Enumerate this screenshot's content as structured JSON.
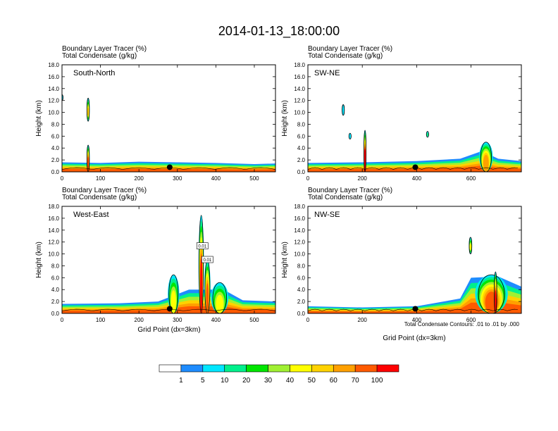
{
  "figure": {
    "title": "2014-01-13_18:00:00",
    "panel_subtitle_line1": "Boundary Layer Tracer   (%)",
    "panel_subtitle_line2": "Total Condensate   (g/kg)",
    "contour_note": "Total Condensate Contours: .01 to .01 by .000"
  },
  "chart_data": [
    {
      "type": "heatmap",
      "name": "South-North",
      "xlabel": "",
      "ylabel": "Height (km)",
      "xlim": [
        0,
        555
      ],
      "ylim": [
        0,
        18
      ],
      "xticks": [
        0,
        100,
        200,
        300,
        400,
        500
      ],
      "yticks": [
        0.0,
        2.0,
        4.0,
        6.0,
        8.0,
        10.0,
        12.0,
        14.0,
        16.0,
        18.0
      ],
      "ytick_labels": [
        "0.0",
        "2.0",
        "4.0",
        "6.0",
        "8.0",
        "10.0",
        "12.0",
        "14.0",
        "16.0",
        "18.0"
      ],
      "marker_x": 280,
      "boundary_layer_top_km": [
        {
          "x": 0,
          "z": 1.6
        },
        {
          "x": 100,
          "z": 1.5
        },
        {
          "x": 200,
          "z": 1.7
        },
        {
          "x": 300,
          "z": 1.6
        },
        {
          "x": 400,
          "z": 1.5
        },
        {
          "x": 500,
          "z": 1.3
        },
        {
          "x": 555,
          "z": 1.4
        }
      ],
      "plumes": [
        {
          "x_center": 68,
          "width": 8,
          "z_top": 4.5,
          "max_pct": 70
        },
        {
          "x_center": 68,
          "width": 8,
          "z_bottom": 8.5,
          "z_top": 12.4,
          "max_pct": 50,
          "detached": true
        },
        {
          "x_center": 0,
          "width": 4,
          "z_bottom": 12.0,
          "z_top": 13.0,
          "max_pct": 5,
          "detached": true
        }
      ]
    },
    {
      "type": "heatmap",
      "name": "SW-NE",
      "xlabel": "",
      "ylabel": "Height (km)",
      "xlim": [
        0,
        785
      ],
      "ylim": [
        0,
        18
      ],
      "xticks": [
        0,
        200,
        400,
        600
      ],
      "yticks": [
        0.0,
        2.0,
        4.0,
        6.0,
        8.0,
        10.0,
        12.0,
        14.0,
        16.0,
        18.0
      ],
      "ytick_labels": [
        "0.0",
        "2.0",
        "4.0",
        "6.0",
        "8.0",
        "10.0",
        "12.0",
        "14.0",
        "16.0",
        "18.0"
      ],
      "marker_x": 395,
      "boundary_layer_top_km": [
        {
          "x": 0,
          "z": 1.5
        },
        {
          "x": 200,
          "z": 1.6
        },
        {
          "x": 400,
          "z": 1.8
        },
        {
          "x": 560,
          "z": 2.2
        },
        {
          "x": 640,
          "z": 3.5
        },
        {
          "x": 700,
          "z": 2.2
        },
        {
          "x": 785,
          "z": 1.8
        }
      ],
      "plumes": [
        {
          "x_center": 210,
          "width": 10,
          "z_top": 7.0,
          "max_pct": 100
        },
        {
          "x_center": 130,
          "width": 10,
          "z_bottom": 9.5,
          "z_top": 11.3,
          "max_pct": 5,
          "detached": true
        },
        {
          "x_center": 155,
          "width": 8,
          "z_bottom": 5.5,
          "z_top": 6.5,
          "max_pct": 5,
          "detached": true
        },
        {
          "x_center": 440,
          "width": 6,
          "z_bottom": 5.8,
          "z_top": 6.8,
          "max_pct": 10,
          "detached": true
        },
        {
          "x_center": 655,
          "width": 50,
          "z_top": 5.0,
          "max_pct": 60
        }
      ]
    },
    {
      "type": "heatmap",
      "name": "West-East",
      "xlabel": "Grid Point (dx=3km)",
      "ylabel": "Height (km)",
      "xlim": [
        0,
        555
      ],
      "ylim": [
        0,
        18
      ],
      "xticks": [
        0,
        100,
        200,
        300,
        400,
        500
      ],
      "yticks": [
        0.0,
        2.0,
        4.0,
        6.0,
        8.0,
        10.0,
        12.0,
        14.0,
        16.0,
        18.0
      ],
      "ytick_labels": [
        "0.0",
        "2.0",
        "4.0",
        "6.0",
        "8.0",
        "10.0",
        "12.0",
        "14.0",
        "16.0",
        "18.0"
      ],
      "marker_x": 280,
      "contour_labels": [
        {
          "text": "0.01",
          "x": 365,
          "z": 11.3
        },
        {
          "text": "0.01",
          "x": 378,
          "z": 9.0
        }
      ],
      "boundary_layer_top_km": [
        {
          "x": 0,
          "z": 1.6
        },
        {
          "x": 150,
          "z": 1.7
        },
        {
          "x": 250,
          "z": 2.0
        },
        {
          "x": 330,
          "z": 4.0
        },
        {
          "x": 420,
          "z": 4.0
        },
        {
          "x": 470,
          "z": 2.2
        },
        {
          "x": 555,
          "z": 2.0
        }
      ],
      "plumes": [
        {
          "x_center": 362,
          "width": 14,
          "z_top": 16.5,
          "max_pct": 100
        },
        {
          "x_center": 378,
          "width": 16,
          "z_top": 9.0,
          "max_pct": 70
        },
        {
          "x_center": 290,
          "width": 30,
          "z_top": 6.5,
          "max_pct": 40
        },
        {
          "x_center": 410,
          "width": 45,
          "z_top": 5.2,
          "max_pct": 40
        }
      ]
    },
    {
      "type": "heatmap",
      "name": "NW-SE",
      "xlabel": "Grid Point (dx=3km)",
      "ylabel": "Height (km)",
      "xlim": [
        0,
        785
      ],
      "ylim": [
        0,
        18
      ],
      "xticks": [
        0,
        200,
        400,
        600
      ],
      "yticks": [
        0.0,
        2.0,
        4.0,
        6.0,
        8.0,
        10.0,
        12.0,
        14.0,
        16.0,
        18.0
      ],
      "ytick_labels": [
        "0.0",
        "2.0",
        "4.0",
        "6.0",
        "8.0",
        "10.0",
        "12.0",
        "14.0",
        "16.0",
        "18.0"
      ],
      "marker_x": 395,
      "boundary_layer_top_km": [
        {
          "x": 0,
          "z": 1.2
        },
        {
          "x": 200,
          "z": 1.0
        },
        {
          "x": 400,
          "z": 1.2
        },
        {
          "x": 560,
          "z": 2.5
        },
        {
          "x": 600,
          "z": 6.0
        },
        {
          "x": 700,
          "z": 6.2
        },
        {
          "x": 785,
          "z": 4.5
        }
      ],
      "plumes": [
        {
          "x_center": 675,
          "width": 120,
          "z_top": 6.5,
          "max_pct": 70
        },
        {
          "x_center": 690,
          "width": 12,
          "z_top": 7.0,
          "max_pct": 100
        },
        {
          "x_center": 598,
          "width": 12,
          "z_bottom": 10.0,
          "z_top": 12.8,
          "max_pct": 40,
          "detached": true
        }
      ]
    }
  ],
  "colorbar": {
    "levels": [
      "1",
      "5",
      "10",
      "20",
      "30",
      "40",
      "50",
      "60",
      "70",
      "100"
    ],
    "colors": [
      "#ffffff",
      "#1e8cff",
      "#00e6ff",
      "#00f08c",
      "#00e600",
      "#a0f032",
      "#ffff00",
      "#ffd200",
      "#ffa000",
      "#ff5a00",
      "#ff0000"
    ]
  }
}
